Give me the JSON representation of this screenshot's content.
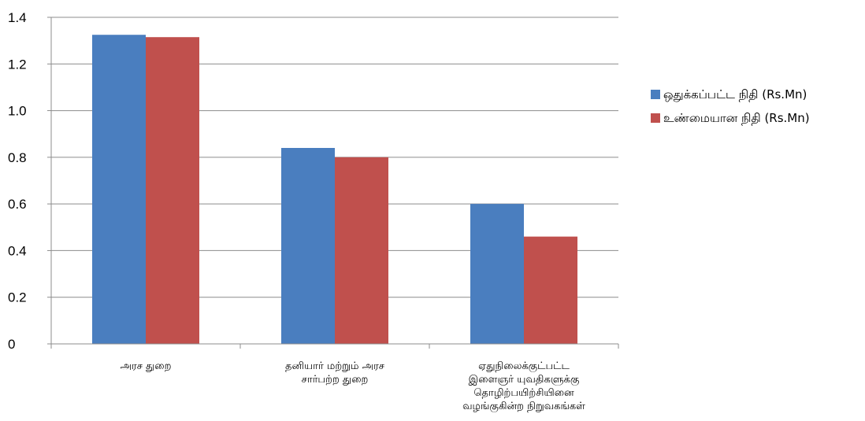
{
  "chart_data": {
    "type": "bar",
    "categories": [
      [
        "அரச துறை"
      ],
      [
        "தனியார் மற்றும் அரச",
        "சார்பற்ற துறை"
      ],
      [
        "ஏதுநிலைக்குட்பட்ட",
        "இளைஞர் யுவதிகளுக்கு",
        "தொழிற்பயிற்சியினை",
        "வழங்குகின்ற நிறுவகங்கள்"
      ]
    ],
    "series": [
      {
        "name": "ஒதுக்கப்பட்ட நிதி (Rs.Mn)",
        "color": "#4a7ebf",
        "values": [
          1.325,
          0.84,
          0.6
        ]
      },
      {
        "name": "உண்மையான நிதி (Rs.Mn)",
        "color": "#c0504d",
        "values": [
          1.315,
          0.8,
          0.46
        ]
      }
    ],
    "yticks": [
      "0",
      "0.2",
      "0.4",
      "0.6",
      "0.8",
      "1.0",
      "1.2",
      "1.4"
    ],
    "ylim": [
      0,
      1.4
    ],
    "grid": true,
    "legend_position": "right"
  }
}
